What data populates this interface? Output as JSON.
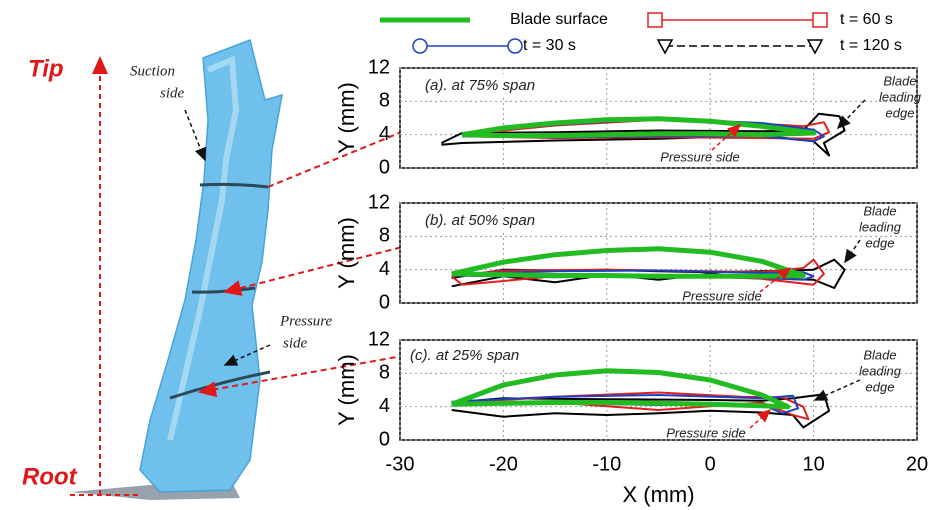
{
  "illustration": {
    "tip": "Tip",
    "root": "Root",
    "suction_label": [
      "Suction",
      "side"
    ],
    "pressure_label": [
      "Pressure",
      "side"
    ]
  },
  "chart_data": [
    {
      "type": "line",
      "ylabel": "Y (mm)",
      "annotation": "(a). at 75% span",
      "edge_label": [
        "Blade",
        "leading",
        "edge"
      ],
      "side_label": "Pressure side",
      "xlim": [
        -30,
        20
      ],
      "xticks": [
        -30,
        -20,
        -10,
        0,
        10,
        20
      ],
      "ylim": [
        0,
        12
      ],
      "yticks": [
        0,
        4,
        8,
        12
      ],
      "grid": true,
      "series": [
        {
          "name": "t = 120 s",
          "color": "#000000",
          "marker": "triangle",
          "dashed": true,
          "x": [
            -26,
            -24,
            -15,
            -5,
            5,
            9,
            10.5,
            12.5,
            13,
            11,
            11.5,
            10,
            5,
            -5,
            -15,
            -24,
            -26
          ],
          "values": [
            3,
            4.2,
            4.3,
            4.5,
            4.4,
            4.5,
            6.5,
            6.2,
            4.5,
            3,
            1.5,
            3.2,
            3.9,
            3.5,
            3.3,
            3,
            2.8
          ]
        },
        {
          "name": "t = 60 s",
          "color": "#e02020",
          "marker": "square",
          "dashed": false,
          "x": [
            -24,
            -15,
            -5,
            5,
            9,
            11,
            11.5,
            10,
            5,
            -5,
            -15,
            -24
          ],
          "values": [
            4,
            5.1,
            5.8,
            5.3,
            5,
            5.5,
            4.3,
            3.5,
            3.6,
            3.7,
            3.6,
            3.8
          ]
        },
        {
          "name": "t = 30 s",
          "color": "#1f3fbf",
          "marker": "circle",
          "dashed": false,
          "x": [
            -24,
            -15,
            -5,
            5,
            10,
            11,
            10,
            5,
            -5,
            -15,
            -24
          ],
          "values": [
            4.2,
            5.2,
            5.9,
            5.4,
            4.6,
            3.8,
            3.2,
            3.8,
            3.8,
            3.7,
            3.8
          ]
        },
        {
          "name": "Blade surface",
          "color": "#22bb22",
          "marker": "none",
          "dashed": false,
          "x": [
            -24,
            -20,
            -15,
            -10,
            -5,
            0,
            5,
            10,
            5,
            0,
            -5,
            -10,
            -15,
            -20,
            -24
          ],
          "values": [
            4,
            4.8,
            5.4,
            5.8,
            5.9,
            5.6,
            5,
            4.2,
            4,
            4.1,
            4.1,
            4,
            3.9,
            3.9,
            4
          ]
        }
      ]
    },
    {
      "type": "line",
      "ylabel": "Y (mm)",
      "annotation": "(b). at 50% span",
      "edge_label": [
        "Blade",
        "leading",
        "edge"
      ],
      "side_label": "Pressure side",
      "xlim": [
        -30,
        20
      ],
      "xticks": [
        -30,
        -20,
        -10,
        0,
        10,
        20
      ],
      "ylim": [
        0,
        12
      ],
      "yticks": [
        0,
        4,
        8,
        12
      ],
      "grid": true,
      "series": [
        {
          "color": "#000000",
          "x": [
            -25,
            -20,
            -15,
            -10,
            -5,
            0,
            5,
            10,
            12,
            13,
            12,
            10,
            5,
            0,
            -5,
            -10,
            -15,
            -20,
            -25
          ],
          "values": [
            3,
            4,
            3.9,
            4,
            3.8,
            3.7,
            3.8,
            4,
            5.2,
            4,
            1.8,
            2.8,
            3,
            3.5,
            2.8,
            3.4,
            2.5,
            3.2,
            2
          ]
        },
        {
          "color": "#e02020",
          "x": [
            -25,
            -20,
            -10,
            0,
            5,
            9,
            10,
            11,
            10,
            5,
            -5,
            -15,
            -24,
            -25
          ],
          "values": [
            3.2,
            3.9,
            4,
            3.8,
            3.7,
            4.2,
            5.2,
            3.5,
            2.2,
            2.9,
            3.4,
            3.2,
            2.2,
            3.2
          ]
        },
        {
          "color": "#1f3fbf",
          "x": [
            -25,
            -15,
            -5,
            5,
            9,
            10,
            9,
            5,
            -5,
            -15,
            -25
          ],
          "values": [
            3.5,
            3.8,
            3.9,
            3.6,
            3.7,
            3.2,
            2.8,
            3,
            3.2,
            3.1,
            3.3
          ]
        },
        {
          "color": "#22bb22",
          "x": [
            -25,
            -20,
            -15,
            -10,
            -5,
            0,
            5,
            9,
            5,
            0,
            -5,
            -10,
            -15,
            -20,
            -25
          ],
          "values": [
            3.5,
            4.9,
            5.8,
            6.3,
            6.5,
            6.1,
            5,
            3.3,
            3.2,
            3.2,
            3.2,
            3.3,
            3.3,
            3.4,
            3.5
          ]
        }
      ]
    },
    {
      "type": "line",
      "ylabel": "Y (mm)",
      "xlabel": "X (mm)",
      "annotation": "(c). at 25% span",
      "edge_label": [
        "Blade",
        "leading",
        "edge"
      ],
      "side_label": "Pressure side",
      "xlim": [
        -30,
        20
      ],
      "xticks": [
        -30,
        -20,
        -10,
        0,
        10,
        20
      ],
      "ylim": [
        0,
        12
      ],
      "yticks": [
        0,
        4,
        8,
        12
      ],
      "grid": true,
      "series": [
        {
          "color": "#000000",
          "x": [
            -25,
            -20,
            -10,
            0,
            5,
            8,
            11,
            11.5,
            9,
            8,
            5,
            0,
            -5,
            -10,
            -15,
            -20,
            -25
          ],
          "values": [
            4.5,
            5,
            4.9,
            4.8,
            4.7,
            5,
            5.5,
            3.5,
            1.5,
            3,
            3.3,
            3.5,
            3.2,
            3,
            3.2,
            2.8,
            3.6
          ]
        },
        {
          "color": "#e02020",
          "x": [
            -25,
            -15,
            -5,
            3,
            7,
            9,
            9.5,
            8,
            5,
            -5,
            -15,
            -25
          ],
          "values": [
            4.4,
            5.2,
            5.7,
            5.2,
            5.1,
            4,
            2.5,
            3,
            4.5,
            3.6,
            4.5,
            4.2
          ]
        },
        {
          "color": "#1f3fbf",
          "x": [
            -25,
            -15,
            -5,
            5,
            8,
            8.5,
            7,
            5,
            -5,
            -15,
            -25
          ],
          "values": [
            4.6,
            5.2,
            5.4,
            5,
            5.3,
            3.8,
            3.2,
            4.3,
            4.2,
            4.4,
            4.2
          ]
        },
        {
          "color": "#22bb22",
          "x": [
            -25,
            -20,
            -15,
            -10,
            -5,
            0,
            5,
            7.5,
            5,
            0,
            -5,
            -10,
            -15,
            -20,
            -25
          ],
          "values": [
            4.3,
            6.6,
            7.8,
            8.3,
            8.1,
            7.2,
            5.4,
            4,
            4.1,
            4.3,
            4.4,
            4.5,
            4.5,
            4.4,
            4.3
          ]
        }
      ]
    }
  ]
}
